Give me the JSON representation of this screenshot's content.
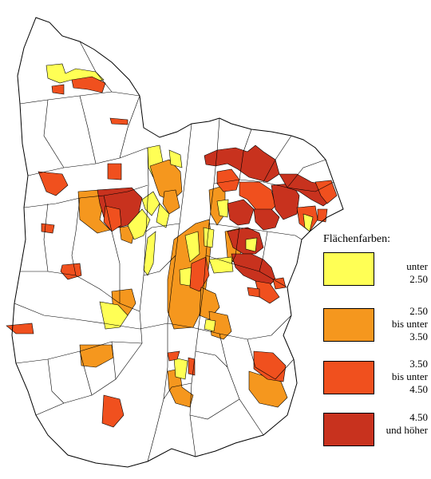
{
  "legend": {
    "title": "Flächenfarben:",
    "items": [
      {
        "lines": [
          "unter",
          "2.50"
        ],
        "color": "#ffff55"
      },
      {
        "lines": [
          "2.50",
          "bis unter",
          "3.50"
        ],
        "color": "#f5971e"
      },
      {
        "lines": [
          "3.50",
          "bis unter",
          "4.50"
        ],
        "color": "#f0501e"
      },
      {
        "lines": [
          "4.50",
          "und höher"
        ],
        "color": "#c8321e"
      }
    ]
  }
}
